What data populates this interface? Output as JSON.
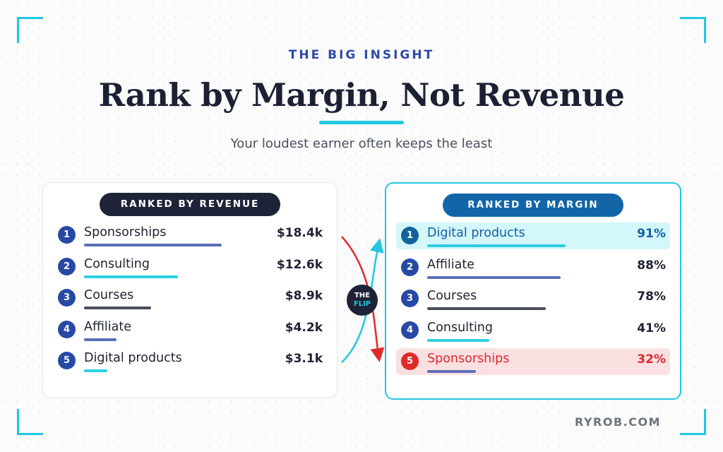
{
  "header": {
    "kicker": "THE BIG INSIGHT",
    "title": "Rank by Margin, Not Revenue",
    "subtitle": "Your loudest earner often keeps the least"
  },
  "left_card": {
    "heading": "RANKED BY REVENUE",
    "rows": [
      {
        "rank": "1",
        "label": "Sponsorships",
        "value": "$18.4k",
        "bar_fraction": 0.47,
        "bar_color": "#5b6fb8"
      },
      {
        "rank": "2",
        "label": "Consulting",
        "value": "$12.6k",
        "bar_fraction": 0.32,
        "bar_color": "#2fcfe4"
      },
      {
        "rank": "3",
        "label": "Courses",
        "value": "$8.9k",
        "bar_fraction": 0.23,
        "bar_color": "#4a4d5a"
      },
      {
        "rank": "4",
        "label": "Affiliate",
        "value": "$4.2k",
        "bar_fraction": 0.11,
        "bar_color": "#5b6fb8"
      },
      {
        "rank": "5",
        "label": "Digital products",
        "value": "$3.1k",
        "bar_fraction": 0.08,
        "bar_color": "#2fcfe4"
      }
    ]
  },
  "right_card": {
    "heading": "RANKED BY MARGIN",
    "rows": [
      {
        "rank": "1",
        "label": "Digital products",
        "value": "91%",
        "bar_fraction": 0.91,
        "bar_color": "#2fcfe4",
        "highlight": "cyan"
      },
      {
        "rank": "2",
        "label": "Affiliate",
        "value": "88%",
        "bar_fraction": 0.88,
        "bar_color": "#5b6fb8",
        "highlight": ""
      },
      {
        "rank": "3",
        "label": "Courses",
        "value": "78%",
        "bar_fraction": 0.78,
        "bar_color": "#4a4d5a",
        "highlight": ""
      },
      {
        "rank": "4",
        "label": "Consulting",
        "value": "41%",
        "bar_fraction": 0.41,
        "bar_color": "#2fcfe4",
        "highlight": ""
      },
      {
        "rank": "5",
        "label": "Sponsorships",
        "value": "32%",
        "bar_fraction": 0.32,
        "bar_color": "#5b6fb8",
        "highlight": "red"
      }
    ]
  },
  "flip_badge": {
    "line1": "THE",
    "line2": "FLIP"
  },
  "brand": "RYROB.COM",
  "colors": {
    "accent": "#1fc8e0",
    "navy": "#1e2338",
    "blue": "#2749a6",
    "red": "#e02a2a"
  }
}
